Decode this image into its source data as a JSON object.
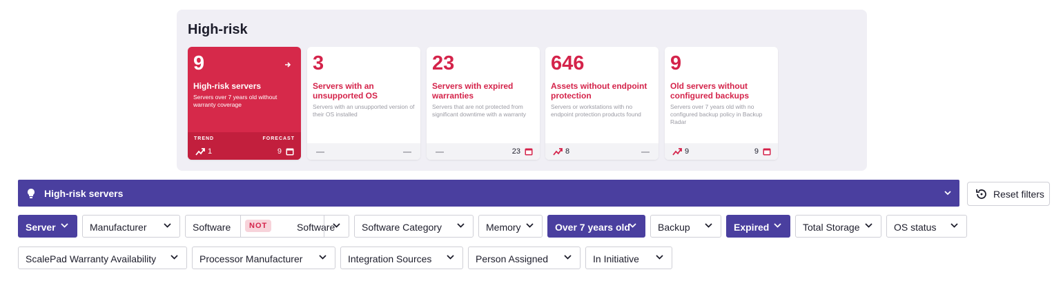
{
  "panel": {
    "title": "High-risk",
    "cards": [
      {
        "value": 9,
        "title": "High-risk servers",
        "description": "Servers over 7 years old without warranty coverage",
        "trend_label": "TREND",
        "forecast_label": "FORECAST",
        "trend": 1,
        "forecast": 9
      },
      {
        "value": 3,
        "title": "Servers with an unsupported OS",
        "description": "Servers with an unsupported version of their OS installed"
      },
      {
        "value": 23,
        "title": "Servers with expired warranties",
        "description": "Servers that are not protected from significant downtime with a warranty",
        "forecast": 23
      },
      {
        "value": 646,
        "title": "Assets without endpoint protection",
        "description": "Servers or workstations with no endpoint protection products found",
        "trend": 8
      },
      {
        "value": 9,
        "title": "Old servers without configured backups",
        "description": "Servers over 7 years old with no configured backup policy in Backup Radar",
        "trend": 9,
        "forecast": 9
      }
    ]
  },
  "filter_bar": {
    "title": "High-risk servers",
    "reset": "Reset filters"
  },
  "filters": [
    [
      {
        "label": "Server",
        "active": true
      },
      {
        "label": "Manufacturer"
      },
      {
        "label": "Software",
        "operator": "NOT",
        "value": "Software"
      },
      {
        "label": "Software Category"
      },
      {
        "label": "Memory"
      },
      {
        "label": "Over 7 years old",
        "active": true
      },
      {
        "label": "Backup"
      },
      {
        "label": "Expired",
        "active": true
      },
      {
        "label": "Total Storage"
      },
      {
        "label": "OS status"
      }
    ],
    [
      {
        "label": "ScalePad Warranty Availability"
      },
      {
        "label": "Processor Manufacturer"
      },
      {
        "label": "Integration Sources"
      },
      {
        "label": "Person Assigned"
      },
      {
        "label": "In Initiative"
      }
    ]
  ]
}
